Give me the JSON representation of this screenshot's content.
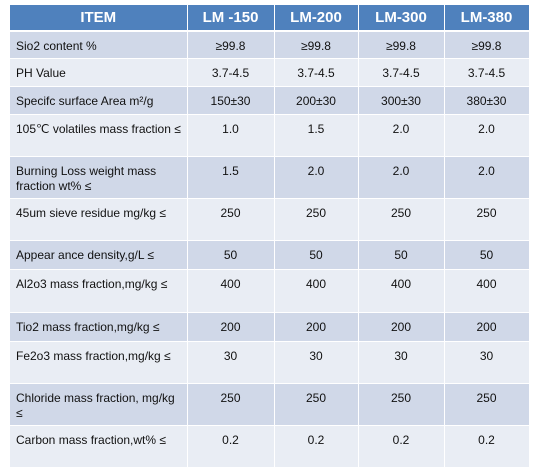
{
  "table": {
    "headers": [
      "ITEM",
      "LM -150",
      "LM-200",
      "LM-300",
      "LM-380"
    ],
    "rows": [
      {
        "item": "Sio2 content %",
        "values": [
          "≥99.8",
          "≥99.8",
          "≥99.8",
          "≥99.8"
        ]
      },
      {
        "item": "PH  Value",
        "values": [
          "3.7-4.5",
          "3.7-4.5",
          "3.7-4.5",
          "3.7-4.5"
        ]
      },
      {
        "item": "Specifc surface Area m²/g",
        "values": [
          "150±30",
          "200±30",
          "300±30",
          "380±30"
        ]
      },
      {
        "item": "105℃ volatiles mass fraction ≤",
        "values": [
          "1.0",
          "1.5",
          "2.0",
          "2.0"
        ]
      },
      {
        "item": "Burning Loss weight  mass fraction wt% ≤",
        "values": [
          "1.5",
          "2.0",
          "2.0",
          "2.0"
        ]
      },
      {
        "item": "45um sieve residue mg/kg ≤",
        "values": [
          "250",
          "250",
          "250",
          "250"
        ]
      },
      {
        "item": "Appear ance density,g/L ≤",
        "values": [
          "50",
          "50",
          "50",
          "50"
        ]
      },
      {
        "item": "Al2o3 mass fraction,mg/kg ≤",
        "values": [
          "400",
          "400",
          "400",
          "400"
        ]
      },
      {
        "item": "Tio2 mass fraction,mg/kg ≤",
        "values": [
          "200",
          "200",
          "200",
          "200"
        ]
      },
      {
        "item": "Fe2o3 mass fraction,mg/kg ≤",
        "values": [
          "30",
          "30",
          "30",
          "30"
        ]
      },
      {
        "item": "Chloride mass fraction, mg/kg ≤",
        "values": [
          "250",
          "250",
          "250",
          "250"
        ]
      },
      {
        "item": "Carbon mass fraction,wt% ≤",
        "values": [
          "0.2",
          "0.2",
          "0.2",
          "0.2"
        ]
      }
    ]
  },
  "colors": {
    "header_bg": "#4f81bd",
    "row_odd_bg": "#d0d8e8",
    "row_even_bg": "#e9edf4"
  }
}
